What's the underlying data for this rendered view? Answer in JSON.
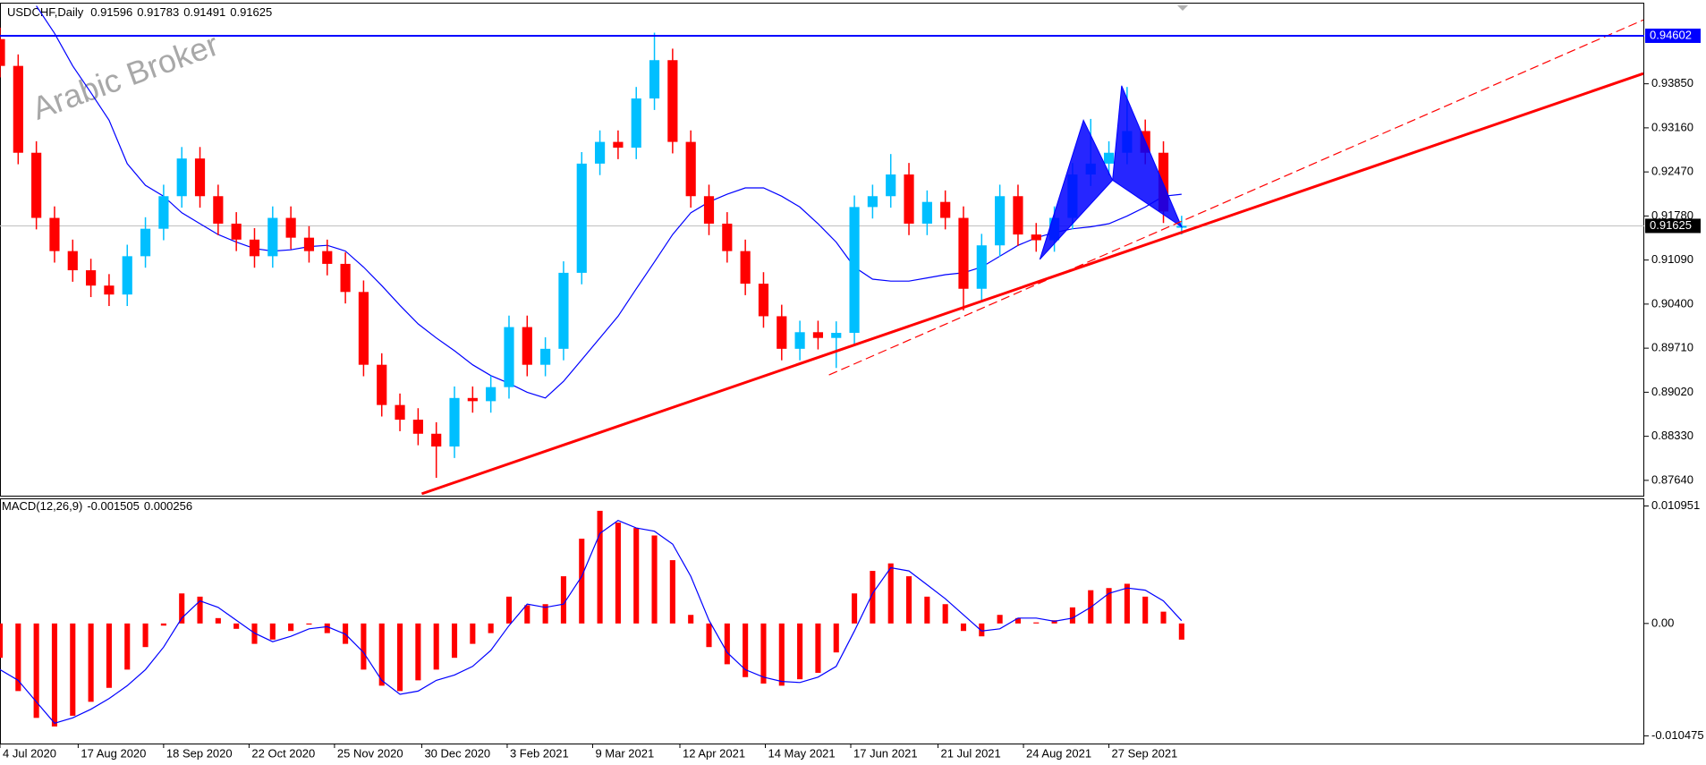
{
  "chart_data": [
    {
      "type": "candlestick",
      "title": "USDCHF,Daily",
      "watermark": "Arabic Broker",
      "up_color": "#00bfff",
      "down_color": "#ff0000",
      "open": [
        0.9455,
        0.9413,
        0.9277,
        0.9175,
        0.9123,
        0.9093,
        0.9069,
        0.9055,
        0.9115,
        0.9158,
        0.9209,
        0.9268,
        0.9209,
        0.9166,
        0.9141,
        0.9115,
        0.9175,
        0.9144,
        0.9123,
        0.9103,
        0.9059,
        0.8945,
        0.8882,
        0.8859,
        0.8837,
        0.8817,
        0.8893,
        0.8888,
        0.891,
        0.9004,
        0.8945,
        0.897,
        0.9089,
        0.926,
        0.9294,
        0.9285,
        0.9362,
        0.9422,
        0.9294,
        0.9209,
        0.9166,
        0.9123,
        0.9072,
        0.9021,
        0.897,
        0.8996,
        0.8987,
        0.8995,
        0.9192,
        0.9209,
        0.9243,
        0.9166,
        0.92,
        0.9175,
        0.9064,
        0.9132,
        0.9209,
        0.9149,
        0.914,
        0.9175,
        0.9243,
        0.926,
        0.9277,
        0.9311,
        0.9277,
        0.91596
      ],
      "high": [
        0.9473,
        0.9431,
        0.9295,
        0.9193,
        0.9141,
        0.9111,
        0.9087,
        0.9133,
        0.9176,
        0.9227,
        0.9286,
        0.9286,
        0.9227,
        0.9184,
        0.9159,
        0.9193,
        0.9193,
        0.9162,
        0.9141,
        0.9121,
        0.9077,
        0.8963,
        0.89,
        0.8877,
        0.8855,
        0.8911,
        0.8911,
        0.8928,
        0.9022,
        0.9022,
        0.8988,
        0.9107,
        0.9278,
        0.9312,
        0.9312,
        0.938,
        0.9465,
        0.944,
        0.9312,
        0.9227,
        0.9184,
        0.9141,
        0.909,
        0.9039,
        0.9014,
        0.9014,
        0.9013,
        0.921,
        0.9227,
        0.9275,
        0.9261,
        0.9218,
        0.9218,
        0.9193,
        0.915,
        0.9227,
        0.9227,
        0.9167,
        0.9193,
        0.9261,
        0.933,
        0.9295,
        0.938,
        0.9329,
        0.9295,
        0.91783
      ],
      "low": [
        0.9395,
        0.9259,
        0.9157,
        0.9105,
        0.9075,
        0.9051,
        0.9037,
        0.9037,
        0.9097,
        0.914,
        0.9191,
        0.9191,
        0.9148,
        0.9123,
        0.9097,
        0.9097,
        0.9126,
        0.9105,
        0.9085,
        0.9041,
        0.8927,
        0.8864,
        0.8841,
        0.8819,
        0.8768,
        0.8799,
        0.887,
        0.887,
        0.8892,
        0.8927,
        0.8927,
        0.8952,
        0.9071,
        0.9242,
        0.9267,
        0.9267,
        0.9344,
        0.9276,
        0.9191,
        0.9148,
        0.9105,
        0.9054,
        0.9003,
        0.8952,
        0.8952,
        0.8969,
        0.894,
        0.8977,
        0.9174,
        0.9191,
        0.9148,
        0.9148,
        0.9157,
        0.903,
        0.9046,
        0.9114,
        0.9131,
        0.9122,
        0.9122,
        0.9157,
        0.9225,
        0.9242,
        0.9259,
        0.9259,
        0.9167,
        0.91491
      ],
      "close": [
        0.9413,
        0.9277,
        0.9175,
        0.9123,
        0.9093,
        0.9069,
        0.9055,
        0.9115,
        0.9158,
        0.9209,
        0.9268,
        0.9209,
        0.9166,
        0.9141,
        0.9115,
        0.9175,
        0.9144,
        0.9123,
        0.9103,
        0.9059,
        0.8945,
        0.8882,
        0.8859,
        0.8837,
        0.8817,
        0.8893,
        0.8888,
        0.891,
        0.9004,
        0.8945,
        0.897,
        0.9089,
        0.926,
        0.9294,
        0.9285,
        0.9362,
        0.9422,
        0.9294,
        0.9209,
        0.9166,
        0.9123,
        0.9072,
        0.9021,
        0.897,
        0.8996,
        0.8987,
        0.8995,
        0.9192,
        0.9209,
        0.9243,
        0.9166,
        0.92,
        0.9175,
        0.9064,
        0.9132,
        0.9209,
        0.9149,
        0.914,
        0.9175,
        0.9243,
        0.926,
        0.9277,
        0.9311,
        0.9277,
        0.9185,
        0.91625
      ],
      "ma": {
        "color": "#0000ff",
        "values": [
          null,
          null,
          0.9507,
          0.9464,
          0.9413,
          0.9371,
          0.9328,
          0.926,
          0.9226,
          0.9209,
          0.9183,
          0.9166,
          0.9149,
          0.9137,
          0.9127,
          0.9123,
          0.9125,
          0.913,
          0.9132,
          0.9123,
          0.9098,
          0.9069,
          0.9038,
          0.9009,
          0.8987,
          0.8967,
          0.8945,
          0.8928,
          0.8916,
          0.8902,
          0.8893,
          0.8919,
          0.8953,
          0.8987,
          0.9021,
          0.9064,
          0.9106,
          0.9149,
          0.9183,
          0.92,
          0.9212,
          0.9222,
          0.9222,
          0.9209,
          0.9192,
          0.9166,
          0.9137,
          0.9098,
          0.9079,
          0.9076,
          0.9076,
          0.9081,
          0.9086,
          0.9089,
          0.9098,
          0.9115,
          0.9132,
          0.9144,
          0.9152,
          0.9158,
          0.9161,
          0.9166,
          0.9178,
          0.9192,
          0.9209,
          0.9212
        ]
      },
      "lines": [
        {
          "x": [
            23.2,
            90.4
          ],
          "y": [
            0.8743,
            0.9401
          ],
          "color": "#ff0000",
          "style": "solid"
        },
        {
          "x": [
            45.6,
            90.4
          ],
          "y": [
            0.8929,
            0.9485
          ],
          "color": "#ff0000",
          "style": "dashed"
        }
      ],
      "hline": {
        "value": 0.94602,
        "color": "#0000ff"
      },
      "price_line_color": "#c0c0c0",
      "pattern": {
        "color": "#0000ff",
        "x": [
          57.2,
          59.6,
          61.2,
          61.7,
          65.0
        ],
        "y": [
          0.911,
          0.9328,
          0.9234,
          0.9382,
          0.9161
        ]
      },
      "xlim": [
        0,
        90.45
      ],
      "xticks": [
        {
          "value": 0,
          "label": "4 Jul 2020"
        },
        {
          "value": 4.3,
          "label": "17 Aug 2020"
        },
        {
          "value": 9.0,
          "label": "18 Sep 2020"
        },
        {
          "value": 13.7,
          "label": "22 Oct 2020"
        },
        {
          "value": 18.4,
          "label": "25 Nov 2020"
        },
        {
          "value": 23.2,
          "label": "30 Dec 2020"
        },
        {
          "value": 27.9,
          "label": "3 Feb 2021"
        },
        {
          "value": 32.6,
          "label": "9 Mar 2021"
        },
        {
          "value": 37.4,
          "label": "12 Apr 2021"
        },
        {
          "value": 42.1,
          "label": "14 May 2021"
        },
        {
          "value": 46.8,
          "label": "17 Jun 2021"
        },
        {
          "value": 51.6,
          "label": "21 Jul 2021"
        },
        {
          "value": 56.3,
          "label": "24 Aug 2021"
        },
        {
          "value": 61.0,
          "label": "27 Sep 2021"
        }
      ],
      "ylim": [
        0.874,
        0.9512
      ],
      "yticks": [
        {
          "value": 0.9385,
          "label": "0.93850"
        },
        {
          "value": 0.9316,
          "label": "0.93160"
        },
        {
          "value": 0.9247,
          "label": "0.92470"
        },
        {
          "value": 0.9178,
          "label": "0.91780"
        },
        {
          "value": 0.9109,
          "label": "0.91090"
        },
        {
          "value": 0.904,
          "label": "0.90400"
        },
        {
          "value": 0.8971,
          "label": "0.89710"
        },
        {
          "value": 0.8902,
          "label": "0.89020"
        },
        {
          "value": 0.8833,
          "label": "0.88330"
        },
        {
          "value": 0.8764,
          "label": "0.87640"
        }
      ]
    },
    {
      "type": "macd",
      "title": "MACD(12,26,9)",
      "color": "#ff0000",
      "signal_color": "#0000ff",
      "values": [
        -0.0032,
        -0.0063,
        -0.0088,
        -0.0096,
        -0.0086,
        -0.0073,
        -0.006,
        -0.0043,
        -0.0022,
        -0.0002,
        0.0028,
        0.0025,
        0.0005,
        -0.0005,
        -0.0019,
        -0.0015,
        -0.0007,
        -0.0001,
        -0.0009,
        -0.0019,
        -0.0043,
        -0.0058,
        -0.0063,
        -0.0053,
        -0.0043,
        -0.0032,
        -0.0019,
        -0.0009,
        0.0025,
        0.0017,
        0.0018,
        0.0044,
        0.0079,
        0.0105,
        0.0094,
        0.0089,
        0.0082,
        0.0059,
        0.0008,
        -0.0022,
        -0.0038,
        -0.005,
        -0.0056,
        -0.0058,
        -0.0052,
        -0.0046,
        -0.0027,
        0.0028,
        0.0049,
        0.0056,
        0.0044,
        0.0025,
        0.0018,
        -0.0007,
        -0.0012,
        0.0008,
        0.0005,
        0.0001,
        0.0003,
        0.0015,
        0.0031,
        0.0033,
        0.0037,
        0.0025,
        0.0011,
        -0.001505
      ],
      "signal": [
        -0.0043,
        -0.0053,
        -0.0073,
        -0.0093,
        -0.0088,
        -0.008,
        -0.007,
        -0.0058,
        -0.0043,
        -0.0022,
        0.0005,
        0.0021,
        0.0015,
        0.0003,
        -0.0009,
        -0.0017,
        -0.0012,
        -0.0005,
        -0.0003,
        -0.001,
        -0.0027,
        -0.0053,
        -0.0066,
        -0.0063,
        -0.0053,
        -0.0048,
        -0.004,
        -0.0025,
        -0.0002,
        0.0018,
        0.0015,
        0.0018,
        0.0044,
        0.0084,
        0.0096,
        0.0089,
        0.0086,
        0.0074,
        0.0044,
        0.0003,
        -0.0027,
        -0.0043,
        -0.005,
        -0.0054,
        -0.0055,
        -0.005,
        -0.004,
        -0.0007,
        0.0028,
        0.0052,
        0.0049,
        0.0036,
        0.0023,
        0.0008,
        -0.0007,
        -0.0005,
        0.0005,
        0.0005,
        0.0002,
        0.0005,
        0.0015,
        0.0028,
        0.0033,
        0.0031,
        0.0021,
        0.000256
      ],
      "ylim": [
        -0.01119,
        0.01166
      ],
      "yticks": [
        0.010951,
        {
          "value": 0,
          "label": "0.00"
        },
        -0.010475
      ]
    }
  ]
}
